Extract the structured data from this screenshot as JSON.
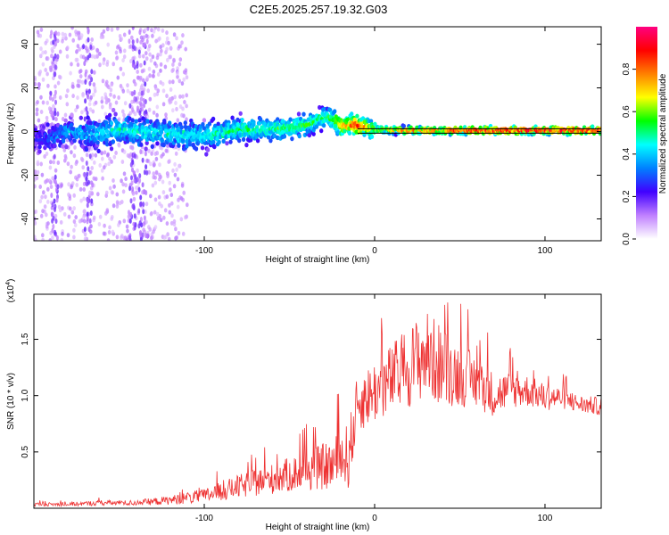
{
  "figure_title": "C2E5.2025.257.19.32.G03",
  "chart_data": [
    {
      "type": "heatmap",
      "title": "C2E5.2025.257.19.32.G03",
      "xlabel": "Height of straight line (km)",
      "ylabel": "Frequency (Hz)",
      "xlim": [
        -200,
        133
      ],
      "ylim": [
        -50,
        48
      ],
      "xticks": [
        -100,
        0,
        100
      ],
      "xtick_labels": [
        "-100",
        "0",
        "100"
      ],
      "yticks": [
        -40,
        -20,
        0,
        20,
        40
      ],
      "ytick_labels": [
        "-40",
        "-20",
        "0",
        "20",
        "40"
      ],
      "grid": false,
      "reference_line_frequency": 0.5,
      "ridge": {
        "x": [
          -195,
          -180,
          -165,
          -150,
          -135,
          -120,
          -100,
          -80,
          -60,
          -40,
          -28,
          -20,
          -10,
          0,
          20,
          40,
          60,
          80,
          100,
          133
        ],
        "frequency": [
          -3,
          0,
          -1,
          1,
          0,
          -1,
          -2,
          1,
          1,
          3,
          7,
          3,
          3,
          1,
          0.5,
          0.5,
          0.5,
          0.5,
          0.5,
          0.5
        ],
        "amplitude": [
          0.25,
          0.35,
          0.4,
          0.45,
          0.45,
          0.45,
          0.45,
          0.5,
          0.5,
          0.55,
          0.5,
          0.7,
          0.85,
          0.6,
          0.8,
          0.8,
          0.9,
          0.9,
          0.9,
          0.9
        ]
      },
      "colorbar": {
        "label": "Normalized spectral amplitude",
        "range": [
          0,
          1
        ],
        "ticks": [
          0.0,
          0.2,
          0.4,
          0.6,
          0.8
        ],
        "tick_labels": [
          "0.0",
          "0.2",
          "0.4",
          "0.6",
          "0.8"
        ],
        "colors": [
          "#ffffff",
          "#c080ff",
          "#4000ff",
          "#0080ff",
          "#00ffff",
          "#00ff00",
          "#ffff00",
          "#ff8000",
          "#ff0000",
          "#ff0080"
        ]
      }
    },
    {
      "type": "line",
      "xlabel": "Height of straight line (km)",
      "ylabel": "SNR (10 * v/v)",
      "y_multiplier": "(x10^4)",
      "y_multiplier_base": "(x10",
      "y_multiplier_exp": "4",
      "y_multiplier_close": ")",
      "xlim": [
        -200,
        133
      ],
      "ylim": [
        0,
        1.9
      ],
      "xticks": [
        -100,
        0,
        100
      ],
      "xtick_labels": [
        "-100",
        "0",
        "100"
      ],
      "yticks": [
        0.5,
        1.0,
        1.5
      ],
      "ytick_labels": [
        "0.5",
        "1.0",
        "1.5"
      ],
      "grid": false,
      "color": "#ee3333",
      "series": [
        {
          "name": "SNR",
          "x": [
            -200,
            -180,
            -160,
            -140,
            -120,
            -100,
            -80,
            -60,
            -40,
            -25,
            -15,
            -10,
            0,
            10,
            20,
            30,
            40,
            50,
            60,
            70,
            80,
            90,
            100,
            110,
            120,
            133
          ],
          "y": [
            0.03,
            0.03,
            0.04,
            0.04,
            0.06,
            0.09,
            0.16,
            0.22,
            0.28,
            0.32,
            0.38,
            0.85,
            0.95,
            1.05,
            1.15,
            1.25,
            1.15,
            1.1,
            1.05,
            0.95,
            1.0,
            1.0,
            0.95,
            0.95,
            0.9,
            0.88
          ],
          "spread": [
            0.02,
            0.02,
            0.03,
            0.03,
            0.05,
            0.08,
            0.13,
            0.17,
            0.22,
            0.28,
            0.38,
            0.32,
            0.35,
            0.4,
            0.45,
            0.5,
            0.45,
            0.35,
            0.3,
            0.25,
            0.2,
            0.18,
            0.15,
            0.12,
            0.1,
            0.1
          ]
        }
      ]
    }
  ]
}
